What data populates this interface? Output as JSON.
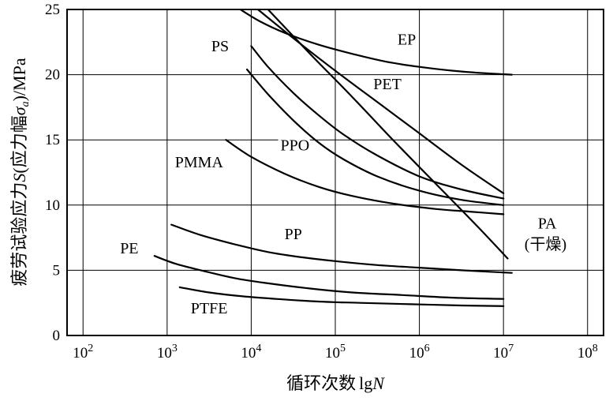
{
  "chart_data": {
    "type": "line",
    "title": "",
    "x_scale": "log10",
    "xlabel": {
      "prefix": "循环次数",
      "log": "lg",
      "var": "N"
    },
    "ylabel": {
      "part1": "疲劳试验应力",
      "var1": "S",
      "part2": "(应力幅",
      "var2": "σ",
      "sub": "a",
      "part3": ")/MPa"
    },
    "xlim": [
      1.81,
      8.19
    ],
    "ylim": [
      0,
      25
    ],
    "x_tick_base": "10",
    "x_tick_exponents": [
      2,
      3,
      4,
      5,
      6,
      7,
      8
    ],
    "y_ticks": [
      0,
      5,
      10,
      15,
      20,
      25
    ],
    "grid": true,
    "legend_position": "inline-labels",
    "colors": {
      "line": "#000000",
      "grid": "#000000",
      "background": "#ffffff"
    },
    "series": [
      {
        "name": "EP",
        "points": [
          [
            3.87,
            25
          ],
          [
            4.1,
            24.1
          ],
          [
            4.4,
            23.2
          ],
          [
            4.8,
            22.3
          ],
          [
            5.2,
            21.6
          ],
          [
            5.6,
            21.0
          ],
          [
            6.0,
            20.6
          ],
          [
            6.4,
            20.3
          ],
          [
            6.8,
            20.1
          ],
          [
            7.1,
            20.0
          ]
        ]
      },
      {
        "name": "PET",
        "points": [
          [
            4.08,
            25
          ],
          [
            4.5,
            22.8
          ],
          [
            5.0,
            20.3
          ],
          [
            5.5,
            17.9
          ],
          [
            6.0,
            15.5
          ],
          [
            6.5,
            13.1
          ],
          [
            7.0,
            10.9
          ]
        ]
      },
      {
        "name": "PA",
        "points": [
          [
            4.2,
            25
          ],
          [
            4.7,
            21.6
          ],
          [
            5.2,
            18.3
          ],
          [
            5.7,
            14.9
          ],
          [
            6.2,
            11.6
          ],
          [
            6.7,
            8.3
          ],
          [
            7.05,
            5.9
          ]
        ]
      },
      {
        "name": "PS",
        "points": [
          [
            4.0,
            22.2
          ],
          [
            4.2,
            20.6
          ],
          [
            4.5,
            18.6
          ],
          [
            4.8,
            16.9
          ],
          [
            5.1,
            15.4
          ],
          [
            5.5,
            13.8
          ],
          [
            6.0,
            12.2
          ],
          [
            6.5,
            11.2
          ],
          [
            7.0,
            10.5
          ]
        ]
      },
      {
        "name": "PPO",
        "points": [
          [
            3.95,
            20.4
          ],
          [
            4.2,
            18.5
          ],
          [
            4.5,
            16.5
          ],
          [
            4.8,
            14.8
          ],
          [
            5.1,
            13.5
          ],
          [
            5.5,
            12.2
          ],
          [
            6.0,
            11.1
          ],
          [
            6.5,
            10.4
          ],
          [
            7.0,
            10.0
          ]
        ]
      },
      {
        "name": "PMMA",
        "points": [
          [
            3.7,
            15.0
          ],
          [
            4.0,
            13.7
          ],
          [
            4.4,
            12.4
          ],
          [
            4.8,
            11.4
          ],
          [
            5.2,
            10.7
          ],
          [
            5.7,
            10.1
          ],
          [
            6.2,
            9.7
          ],
          [
            6.6,
            9.5
          ],
          [
            7.0,
            9.3
          ]
        ]
      },
      {
        "name": "PP",
        "points": [
          [
            3.05,
            8.5
          ],
          [
            3.4,
            7.7
          ],
          [
            3.8,
            7.0
          ],
          [
            4.2,
            6.4
          ],
          [
            4.6,
            6.0
          ],
          [
            5.0,
            5.7
          ],
          [
            5.5,
            5.4
          ],
          [
            6.0,
            5.2
          ],
          [
            6.5,
            5.0
          ],
          [
            7.1,
            4.8
          ]
        ]
      },
      {
        "name": "PE",
        "points": [
          [
            2.85,
            6.1
          ],
          [
            3.1,
            5.5
          ],
          [
            3.4,
            5.0
          ],
          [
            3.8,
            4.4
          ],
          [
            4.2,
            4.0
          ],
          [
            4.7,
            3.6
          ],
          [
            5.2,
            3.3
          ],
          [
            5.8,
            3.1
          ],
          [
            6.4,
            2.9
          ],
          [
            7.0,
            2.8
          ]
        ]
      },
      {
        "name": "PTFE",
        "points": [
          [
            3.15,
            3.7
          ],
          [
            3.5,
            3.3
          ],
          [
            3.9,
            3.0
          ],
          [
            4.3,
            2.8
          ],
          [
            4.8,
            2.6
          ],
          [
            5.3,
            2.5
          ],
          [
            5.9,
            2.4
          ],
          [
            6.5,
            2.3
          ],
          [
            7.0,
            2.25
          ]
        ]
      }
    ],
    "labels": [
      {
        "name": "ps",
        "text": "PS",
        "x": 3.63,
        "y": 21.8
      },
      {
        "name": "ep",
        "text": "EP",
        "x": 5.85,
        "y": 22.3
      },
      {
        "name": "pet",
        "text": "PET",
        "x": 5.62,
        "y": 18.9
      },
      {
        "name": "ppo",
        "text": "PPO",
        "x": 4.52,
        "y": 14.2
      },
      {
        "name": "pmma",
        "text": "PMMA",
        "x": 3.38,
        "y": 12.9
      },
      {
        "name": "pp",
        "text": "PP",
        "x": 4.5,
        "y": 7.4
      },
      {
        "name": "pe",
        "text": "PE",
        "x": 2.55,
        "y": 6.3
      },
      {
        "name": "ptfe",
        "text": "PTFE",
        "x": 3.5,
        "y": 1.7
      },
      {
        "name": "pa",
        "text": "PA",
        "x": 7.52,
        "y": 8.2
      },
      {
        "name": "pa-dry",
        "text": "(干燥)",
        "x": 7.5,
        "y": 6.6
      }
    ]
  }
}
